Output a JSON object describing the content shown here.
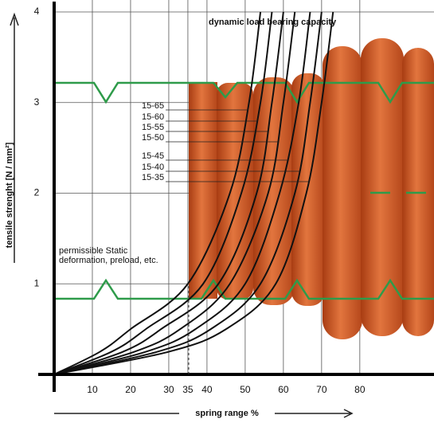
{
  "chart_data": {
    "type": "line",
    "title": "dynamic load bearing capacity",
    "annotation": [
      "permissible Static",
      "deformation, preload, etc."
    ],
    "x_label": "spring range %",
    "y_label": "tensile strenght [N / mm²]",
    "xlim": [
      0,
      99
    ],
    "ylim": [
      0,
      4.1
    ],
    "xticks": [
      10,
      20,
      30,
      35,
      40,
      50,
      60,
      70,
      80
    ],
    "yticks": [
      1,
      2,
      3,
      4
    ],
    "grid": true,
    "series": [
      {
        "name": "15-65",
        "color": "#111111",
        "x": [
          0,
          12,
          20,
          35,
          46,
          51,
          54
        ],
        "values": [
          0,
          0.25,
          0.5,
          1,
          2,
          3,
          4
        ]
      },
      {
        "name": "15-60",
        "color": "#111111",
        "x": [
          0,
          15,
          24,
          39,
          49,
          54,
          57
        ],
        "values": [
          0,
          0.25,
          0.5,
          1,
          2,
          3,
          4
        ]
      },
      {
        "name": "15-55",
        "color": "#111111",
        "x": [
          0,
          18,
          28,
          43,
          53,
          57,
          60
        ],
        "values": [
          0,
          0.25,
          0.5,
          1,
          2,
          3,
          4
        ]
      },
      {
        "name": "15-50",
        "color": "#111111",
        "x": [
          0,
          21,
          33,
          46,
          56,
          60,
          63
        ],
        "values": [
          0,
          0.25,
          0.5,
          1,
          2,
          3,
          4
        ]
      },
      {
        "name": "15-45",
        "color": "#111111",
        "x": [
          0,
          24,
          37,
          50,
          59,
          64,
          67
        ],
        "values": [
          0,
          0.25,
          0.5,
          1,
          2,
          3,
          4
        ]
      },
      {
        "name": "15-40",
        "color": "#111111",
        "x": [
          0,
          27,
          41,
          54,
          63,
          67,
          70
        ],
        "values": [
          0,
          0.25,
          0.5,
          1,
          2,
          3,
          4
        ]
      },
      {
        "name": "15-35",
        "color": "#111111",
        "x": [
          0,
          30,
          45,
          58,
          66,
          70,
          73
        ],
        "values": [
          0,
          0.25,
          0.5,
          1,
          2,
          3,
          4
        ]
      }
    ]
  }
}
